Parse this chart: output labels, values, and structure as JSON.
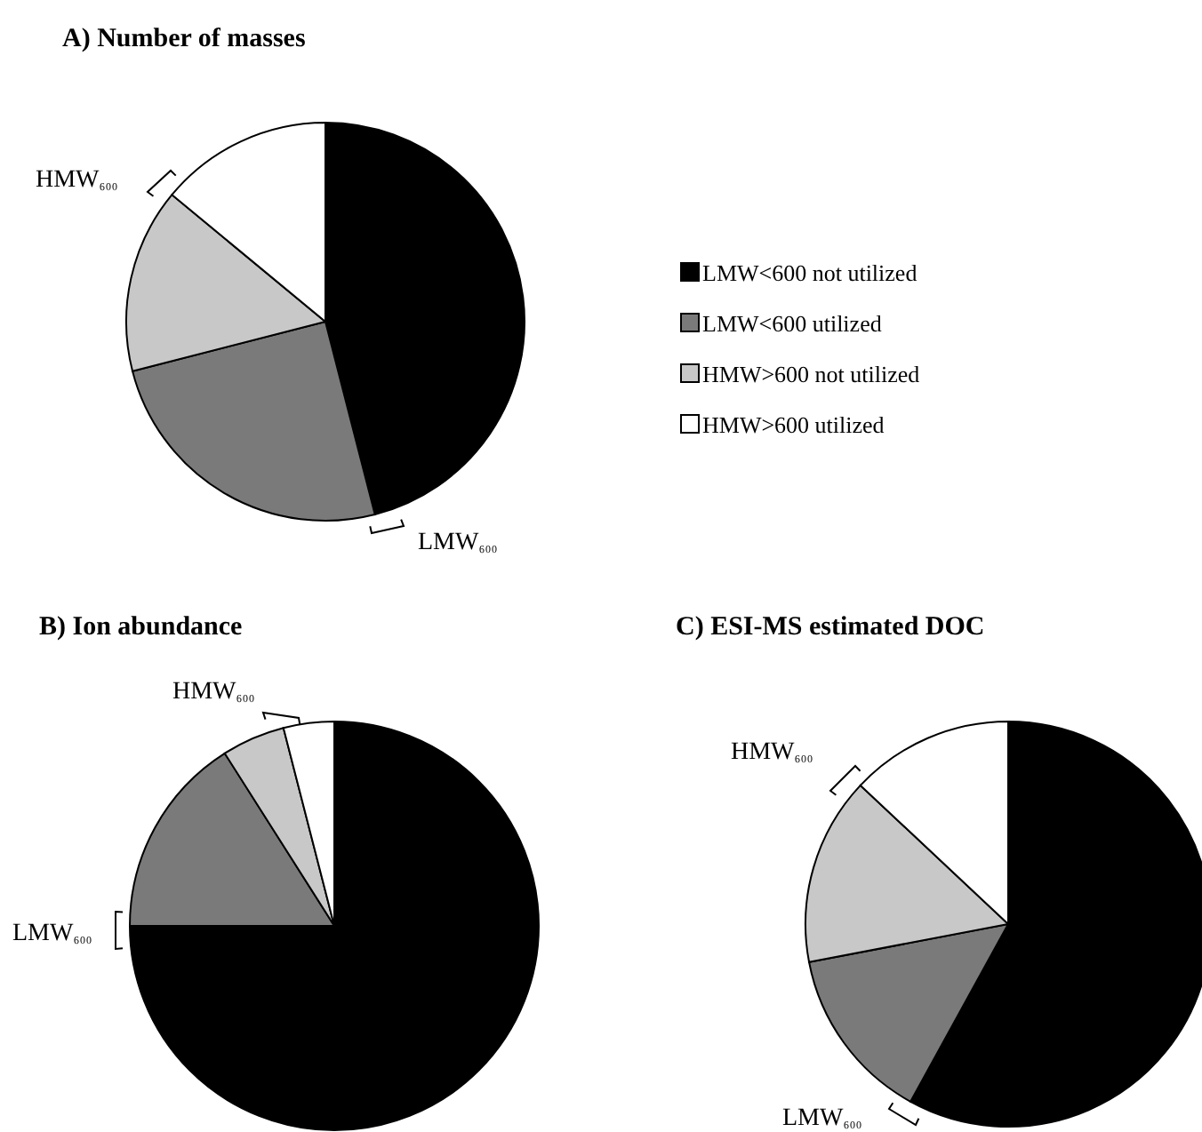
{
  "chart_data": [
    {
      "type": "pie",
      "title": "A) Number of masses",
      "categories": [
        "LMW<600 not utilized",
        "LMW<600 utilized",
        "HMW>600 not utilized",
        "HMW>600 utilized"
      ],
      "values": [
        46,
        25,
        15,
        14
      ],
      "colors": [
        "#000000",
        "#7a7a7a",
        "#c8c8c8",
        "#ffffff"
      ],
      "legend": "right",
      "annotations": [
        "HMW₆₀₀",
        "LMW₆₀₀"
      ]
    },
    {
      "type": "pie",
      "title": "B) Ion abundance",
      "categories": [
        null,
        null,
        null,
        null
      ],
      "values": [
        75,
        16,
        5,
        4
      ],
      "colors": [
        "#000000",
        "#7a7a7a",
        "#c8c8c8",
        "#ffffff"
      ],
      "annotations": [
        "HMW₆₀₀",
        "LMW₆₀₀"
      ]
    },
    {
      "type": "pie",
      "title": "C) ESI-MS estimated DOC",
      "categories": [
        null,
        null,
        null,
        null
      ],
      "values": [
        58,
        14,
        15,
        13
      ],
      "colors": [
        "#000000",
        "#7a7a7a",
        "#c8c8c8",
        "#ffffff"
      ],
      "annotations": [
        "HMW₆₀₀",
        "LMW₆₀₀"
      ]
    }
  ]
}
